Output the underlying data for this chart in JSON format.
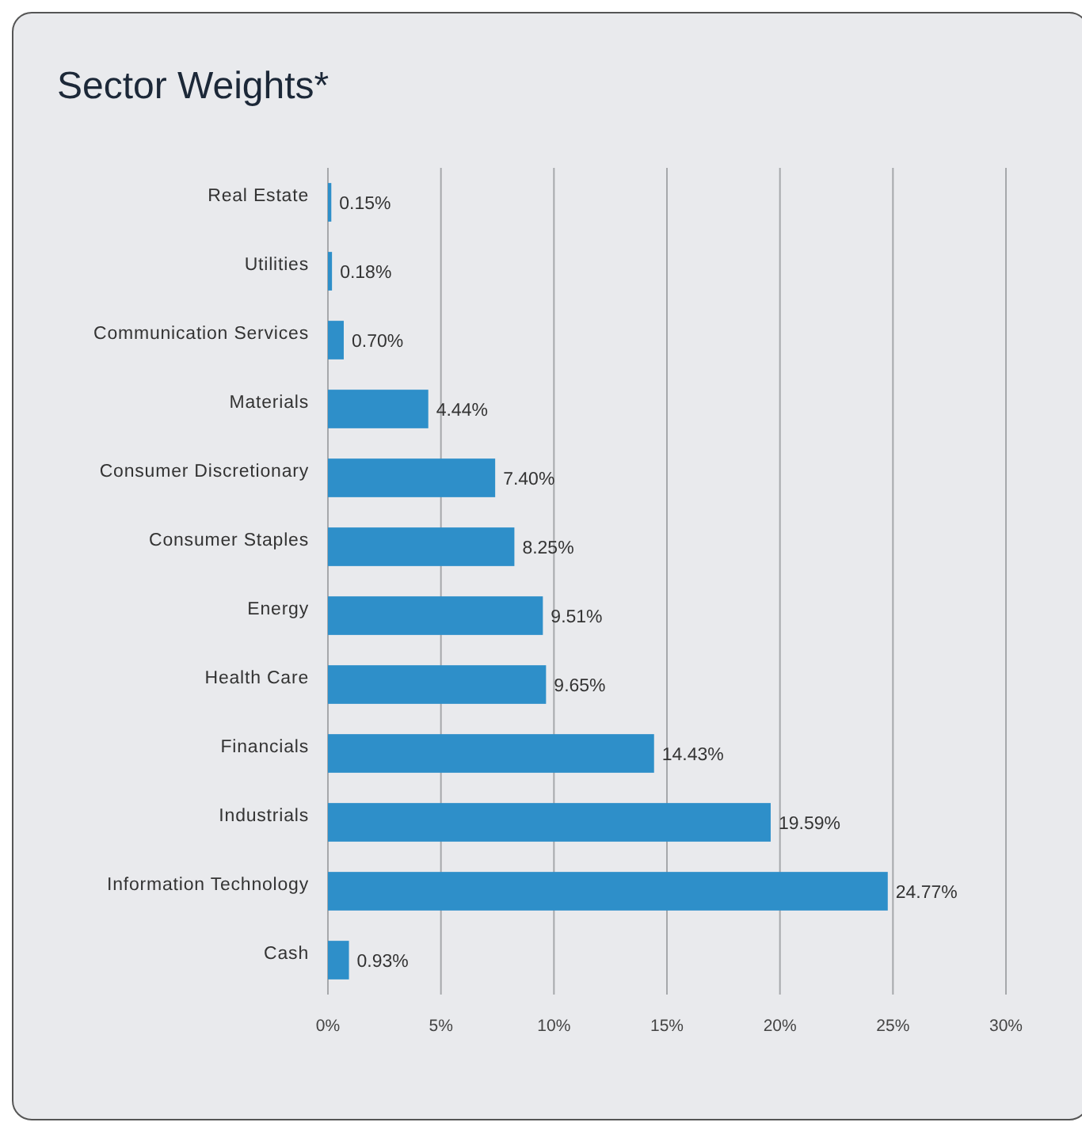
{
  "chart_data": {
    "type": "bar",
    "orientation": "horizontal",
    "title": "Sector Weights*",
    "categories": [
      "Real Estate",
      "Utilities",
      "Communication Services",
      "Materials",
      "Consumer Discretionary",
      "Consumer Staples",
      "Energy",
      "Health Care",
      "Financials",
      "Industrials",
      "Information Technology",
      "Cash"
    ],
    "values": [
      0.15,
      0.18,
      0.7,
      4.44,
      7.4,
      8.25,
      9.51,
      9.65,
      14.43,
      19.59,
      24.77,
      0.93
    ],
    "value_labels": [
      "0.15%",
      "0.18%",
      "0.70%",
      "4.44%",
      "7.40%",
      "8.25%",
      "9.51%",
      "9.65%",
      "14.43%",
      "19.59%",
      "24.77%",
      "0.93%"
    ],
    "color": "#2e8fc9",
    "xlim": [
      0,
      30
    ],
    "xticks": [
      {
        "value": 0,
        "label": "0%"
      },
      {
        "value": 5,
        "label": "5%"
      },
      {
        "value": 10,
        "label": "10%"
      },
      {
        "value": 15,
        "label": "15%"
      },
      {
        "value": 20,
        "label": "20%"
      },
      {
        "value": 25,
        "label": "25%"
      },
      {
        "value": 30,
        "label": "30%"
      }
    ],
    "grid": "x"
  }
}
